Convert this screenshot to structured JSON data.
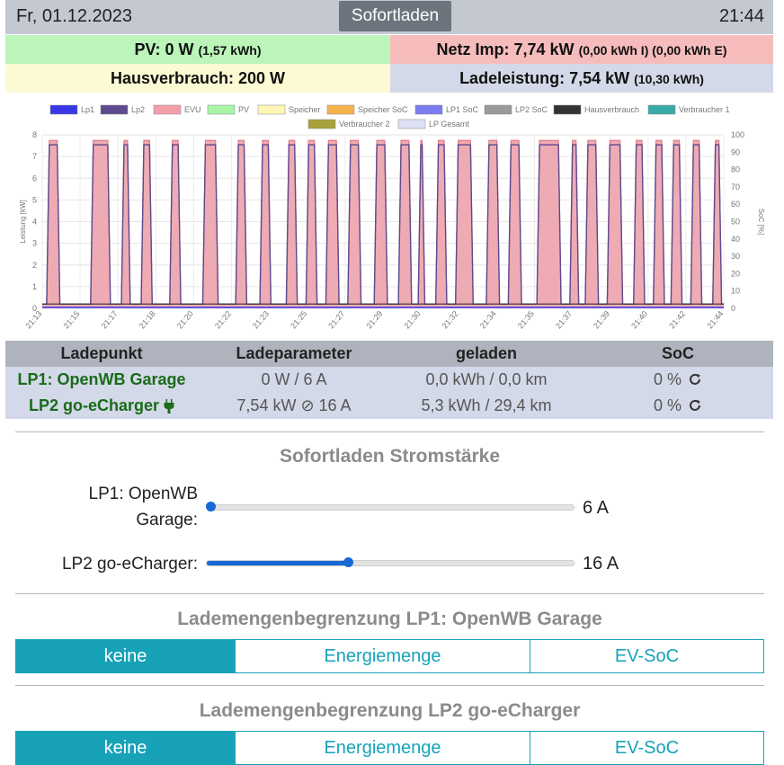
{
  "header": {
    "date": "Fr, 01.12.2023",
    "mode": "Sofortladen",
    "time": "21:44"
  },
  "stats": {
    "pv": {
      "label": "PV: 0 W",
      "detail": "(1,57 kWh)"
    },
    "grid": {
      "label": "Netz Imp: 7,74 kW",
      "detail": "(0,00 kWh I) (0,00 kWh E)"
    },
    "house": {
      "label": "Hausverbrauch: 200 W"
    },
    "charge": {
      "label": "Ladeleistung: 7,54 kW",
      "detail": "(10,30 kWh)"
    }
  },
  "chart_data": {
    "type": "area",
    "title": "",
    "xlabel": "",
    "ylabel": "Leistung [kW]",
    "y2label": "SoC [%]",
    "ylim": [
      0,
      8
    ],
    "y2lim": [
      0,
      100
    ],
    "yticks": [
      0,
      1,
      2,
      3,
      4,
      5,
      6,
      7,
      8
    ],
    "y2ticks": [
      0,
      10,
      20,
      30,
      40,
      50,
      60,
      70,
      80,
      90,
      100
    ],
    "grid": true,
    "legend_position": "top",
    "legend": [
      {
        "name": "Lp1",
        "color": "#3838e8"
      },
      {
        "name": "Lp2",
        "color": "#5e4a8e"
      },
      {
        "name": "EVU",
        "color": "#f2a0a8"
      },
      {
        "name": "PV",
        "color": "#a8f5a8"
      },
      {
        "name": "Speicher",
        "color": "#fdf6b6"
      },
      {
        "name": "Speicher SoC",
        "color": "#f5b24a"
      },
      {
        "name": "LP1 SoC",
        "color": "#7b7bf0"
      },
      {
        "name": "LP2 SoC",
        "color": "#9a9a9a"
      },
      {
        "name": "Hausverbrauch",
        "color": "#333333"
      },
      {
        "name": "Verbraucher 1",
        "color": "#3aaaa6"
      },
      {
        "name": "Verbraucher 2",
        "color": "#a8a23a"
      },
      {
        "name": "LP Gesamt",
        "color": "#dde0f5"
      }
    ],
    "x_ticks": [
      "21:13",
      "21:15",
      "21:17",
      "21:18",
      "21:20",
      "21:22",
      "21:23",
      "21:25",
      "21:27",
      "21:29",
      "21:30",
      "21:32",
      "21:34",
      "21:35",
      "21:37",
      "21:39",
      "21:40",
      "21:42",
      "21:44"
    ],
    "x_range_minutes": [
      0,
      31
    ],
    "pulses_on_minutes": [
      [
        0.2,
        0.8
      ],
      [
        2.2,
        3.1
      ],
      [
        3.6,
        4.0
      ],
      [
        4.5,
        5.0
      ],
      [
        5.8,
        6.3
      ],
      [
        7.3,
        8.0
      ],
      [
        8.8,
        9.3
      ],
      [
        9.9,
        10.4
      ],
      [
        11.1,
        11.6
      ],
      [
        12.0,
        12.5
      ],
      [
        12.9,
        13.5
      ],
      [
        13.9,
        14.5
      ],
      [
        15.1,
        15.7
      ],
      [
        16.2,
        16.8
      ],
      [
        17.1,
        17.4
      ],
      [
        17.9,
        18.4
      ],
      [
        18.8,
        19.6
      ],
      [
        20.2,
        20.8
      ],
      [
        21.2,
        21.8
      ],
      [
        22.5,
        23.6
      ],
      [
        24.0,
        24.4
      ],
      [
        24.7,
        25.3
      ],
      [
        25.7,
        26.4
      ],
      [
        26.9,
        27.4
      ],
      [
        27.8,
        28.3
      ],
      [
        28.6,
        29.1
      ],
      [
        29.5,
        30.0
      ],
      [
        30.5,
        30.9
      ]
    ],
    "on_power_kw": {
      "EVU": 7.74,
      "Lp2": 7.54
    },
    "baseline_kw": {
      "EVU": 0.2,
      "Hausverbrauch": 0.2,
      "LP1 SoC": 0.0
    }
  },
  "table": {
    "headers": [
      "Ladepunkt",
      "Ladeparameter",
      "geladen",
      "SoC"
    ],
    "rows": [
      {
        "name": "LP1: OpenWB Garage",
        "params": "0 W / 6 A",
        "charged": "0,0 kWh / 0,0 km",
        "soc": "0 %"
      },
      {
        "name": "LP2 go-eCharger",
        "params": "7,54 kW ⊘ 16 A",
        "charged": "5,3 kWh / 29,4 km",
        "soc": "0 %"
      }
    ]
  },
  "current": {
    "title": "Sofortladen Stromstärke",
    "lp1": {
      "label_line1": "LP1: OpenWB",
      "label_line2": "Garage:",
      "value": "6 A",
      "fraction": 0.0
    },
    "lp2": {
      "label": "LP2 go-eCharger:",
      "value": "16 A",
      "fraction": 0.385
    }
  },
  "limit_lp1": {
    "title": "Lademengenbegrenzung LP1: OpenWB Garage",
    "options": [
      "keine",
      "Energiemenge",
      "EV-SoC"
    ],
    "active": "keine"
  },
  "limit_lp2": {
    "title": "Lademengenbegrenzung LP2 go-eCharger",
    "options": [
      "keine",
      "Energiemenge",
      "EV-SoC"
    ],
    "active": "keine"
  },
  "icons": {
    "refresh": "refresh-icon",
    "plug": "plug-icon"
  }
}
